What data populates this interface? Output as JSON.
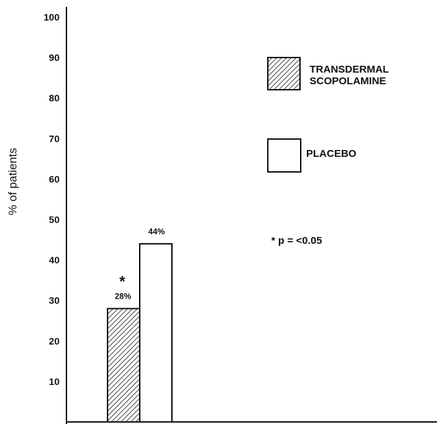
{
  "chart_data": {
    "type": "bar",
    "categories": [
      ""
    ],
    "series": [
      {
        "name": "TRANSDERMAL SCOPOLAMINE",
        "values": [
          28
        ],
        "data_label": "28%",
        "pattern": "hatched"
      },
      {
        "name": "PLACEBO",
        "values": [
          44
        ],
        "data_label": "44%",
        "pattern": "open"
      }
    ],
    "ylabel": "% of patients",
    "ylim": [
      0,
      100
    ],
    "yticks": [
      "10",
      "20",
      "30",
      "40",
      "50",
      "60",
      "70",
      "80",
      "90",
      "100"
    ],
    "significance_marker": "*",
    "legend": {
      "items": [
        {
          "lines": [
            "TRANSDERMAL",
            "SCOPOLAMINE"
          ]
        },
        {
          "lines": [
            "PLACEBO"
          ]
        }
      ],
      "placement": "top-right"
    },
    "annotation": "* p = <0.05",
    "grid": false,
    "colors": {
      "ink": "#111111",
      "fill_open": "#ffffff"
    }
  }
}
